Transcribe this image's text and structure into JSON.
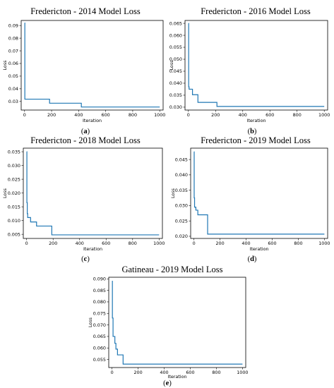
{
  "panels": [
    {
      "caption_letter": "a",
      "chart_data": {
        "type": "line",
        "title": "Fredericton - 2014 Model Loss",
        "xlabel": "Iteration",
        "ylabel": "Loss",
        "xlim": [
          -25,
          1025
        ],
        "ylim": [
          0.0232,
          0.094
        ],
        "xticks": [
          0,
          200,
          400,
          600,
          800,
          1000
        ],
        "yticks": [
          0.03,
          0.04,
          0.05,
          0.06,
          0.07,
          0.08,
          0.09
        ],
        "ytick_labels": [
          "0.03",
          "0.04",
          "0.05",
          "0.06",
          "0.07",
          "0.08",
          "0.09"
        ],
        "step": true,
        "color": "#1f77b4",
        "series": [
          {
            "x": [
              0,
              2,
              185,
              420,
              1000
            ],
            "y": [
              0.092,
              0.0318,
              0.0286,
              0.0256,
              0.0256
            ]
          }
        ]
      }
    },
    {
      "caption_letter": "b",
      "chart_data": {
        "type": "line",
        "title": "Fredericton - 2016 Model Loss",
        "xlabel": "Iteration",
        "ylabel": "Loss",
        "xlim": [
          -25,
          1025
        ],
        "ylim": [
          0.0288,
          0.0662
        ],
        "xticks": [
          0,
          200,
          400,
          600,
          800,
          1000
        ],
        "yticks": [
          0.03,
          0.035,
          0.04,
          0.045,
          0.05,
          0.055,
          0.06,
          0.065
        ],
        "ytick_labels": [
          "0.030",
          "0.035",
          "0.040",
          "0.045",
          "0.050",
          "0.055",
          "0.060",
          "0.065"
        ],
        "step": true,
        "color": "#1f77b4",
        "series": [
          {
            "x": [
              0,
              2,
              5,
              30,
              70,
              210,
              1000
            ],
            "y": [
              0.065,
              0.0385,
              0.0375,
              0.0352,
              0.032,
              0.0303,
              0.0303
            ]
          }
        ]
      }
    },
    {
      "caption_letter": "c",
      "chart_data": {
        "type": "line",
        "title": "Fredericton - 2018 Model Loss",
        "xlabel": "Iteration",
        "ylabel": "Loss",
        "xlim": [
          -25,
          1025
        ],
        "ylim": [
          0.0035,
          0.0363
        ],
        "xticks": [
          0,
          200,
          400,
          600,
          800,
          1000
        ],
        "yticks": [
          0.005,
          0.01,
          0.015,
          0.02,
          0.025,
          0.03,
          0.035
        ],
        "ytick_labels": [
          "0.005",
          "0.010",
          "0.015",
          "0.020",
          "0.025",
          "0.030",
          "0.035"
        ],
        "step": true,
        "color": "#1f77b4",
        "series": [
          {
            "x": [
              0,
              2,
              5,
              8,
              30,
              75,
              190,
              1000
            ],
            "y": [
              0.035,
              0.0165,
              0.0125,
              0.0111,
              0.0095,
              0.008,
              0.0048,
              0.0048
            ]
          }
        ]
      }
    },
    {
      "caption_letter": "d",
      "chart_data": {
        "type": "line",
        "title": "Fredericton - 2019 Model Loss",
        "xlabel": "Iteration",
        "ylabel": "Loss",
        "xlim": [
          -25,
          1025
        ],
        "ylim": [
          0.0193,
          0.0487
        ],
        "xticks": [
          0,
          200,
          400,
          600,
          800,
          1000
        ],
        "yticks": [
          0.02,
          0.025,
          0.03,
          0.035,
          0.04,
          0.045
        ],
        "ytick_labels": [
          "0.020",
          "0.025",
          "0.030",
          "0.035",
          "0.040",
          "0.045"
        ],
        "step": true,
        "color": "#1f77b4",
        "series": [
          {
            "x": [
              0,
              2,
              5,
              15,
              30,
              105,
              1000
            ],
            "y": [
              0.0475,
              0.0325,
              0.0295,
              0.0285,
              0.027,
              0.0207,
              0.0207
            ]
          }
        ]
      }
    },
    {
      "caption_letter": "e",
      "chart_data": {
        "type": "line",
        "title": "Gatineau - 2019 Model Loss",
        "xlabel": "Iteration",
        "ylabel": "Loss",
        "xlim": [
          -25,
          1025
        ],
        "ylim": [
          0.0515,
          0.0907
        ],
        "xticks": [
          0,
          200,
          400,
          600,
          800,
          1000
        ],
        "yticks": [
          0.055,
          0.06,
          0.065,
          0.07,
          0.075,
          0.08,
          0.085,
          0.09
        ],
        "ytick_labels": [
          "0.055",
          "0.060",
          "0.065",
          "0.070",
          "0.075",
          "0.080",
          "0.085",
          "0.090"
        ],
        "step": true,
        "color": "#1f77b4",
        "series": [
          {
            "x": [
              0,
              3,
              8,
              22,
              30,
              42,
              85,
              1000
            ],
            "y": [
              0.089,
              0.073,
              0.065,
              0.062,
              0.0595,
              0.057,
              0.053,
              0.053
            ]
          }
        ]
      }
    }
  ]
}
